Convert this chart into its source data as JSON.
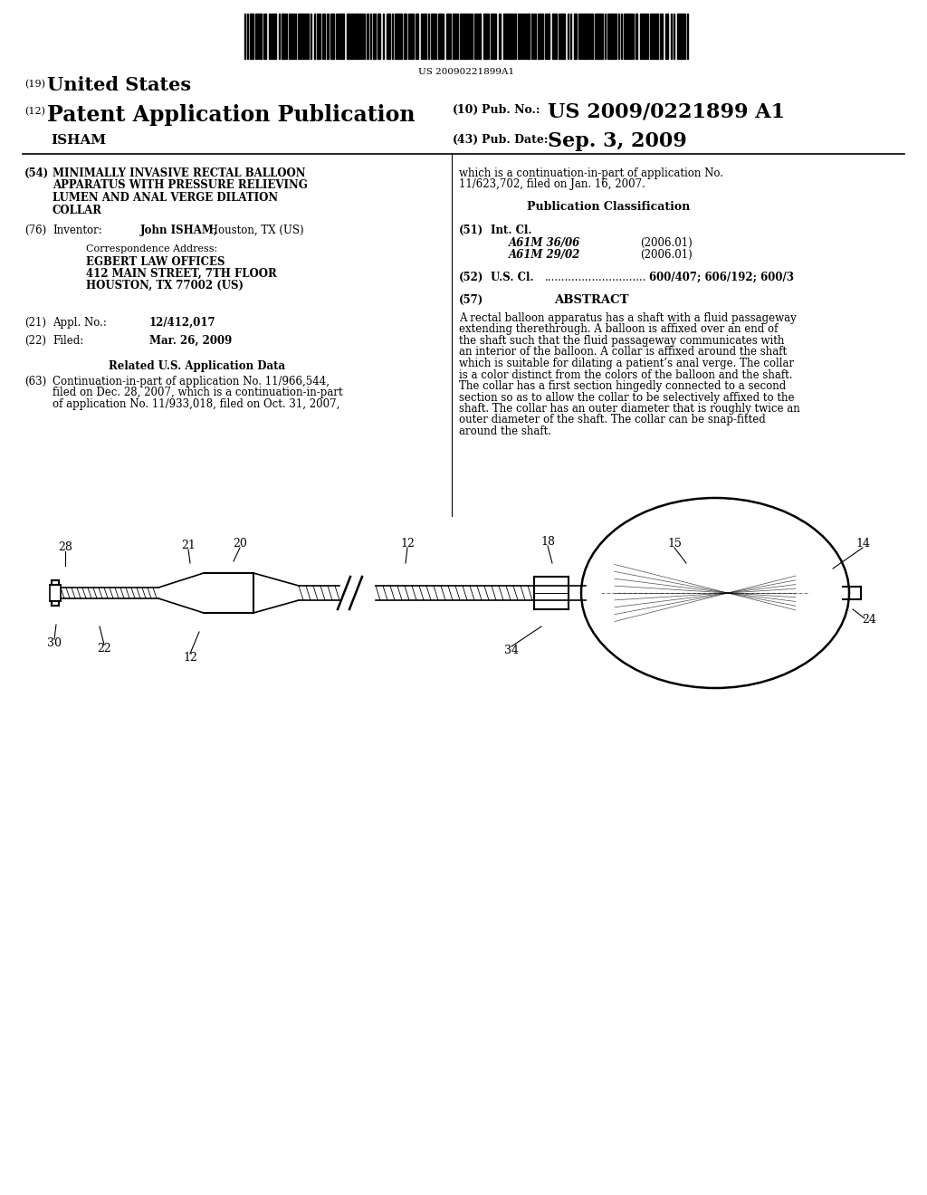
{
  "bg_color": "#ffffff",
  "barcode_text": "US 20090221899A1",
  "header_19": "(19)",
  "header_19_text": "United States",
  "header_12": "(12)",
  "header_12_text": "Patent Application Publication",
  "header_name": "ISHAM",
  "header_10_label": "(10)",
  "header_10_pub": "Pub. No.:",
  "header_10_value": "US 2009/0221899 A1",
  "header_43_label": "(43)",
  "header_43_pub": "Pub. Date:",
  "header_43_value": "Sep. 3, 2009",
  "field_54_num": "(54)",
  "field_54_lines": [
    "MINIMALLY INVASIVE RECTAL BALLOON",
    "APPARATUS WITH PRESSURE RELIEVING",
    "LUMEN AND ANAL VERGE DILATION",
    "COLLAR"
  ],
  "field_76_num": "(76)",
  "field_76_label": "Inventor:",
  "field_76_name": "John ISHAM,",
  "field_76_rest": " Houston, TX (US)",
  "corr_label": "Correspondence Address:",
  "corr_line1": "EGBERT LAW OFFICES",
  "corr_line2": "412 MAIN STREET, 7TH FLOOR",
  "corr_line3": "HOUSTON, TX 77002 (US)",
  "field_21_num": "(21)",
  "field_21_label": "Appl. No.:",
  "field_21_value": "12/412,017",
  "field_22_num": "(22)",
  "field_22_label": "Filed:",
  "field_22_value": "Mar. 26, 2009",
  "related_header": "Related U.S. Application Data",
  "field_63_num": "(63)",
  "field_63_lines": [
    "Continuation-in-part of application No. 11/966,544,",
    "filed on Dec. 28, 2007, which is a continuation-in-part",
    "of application No. 11/933,018, filed on Oct. 31, 2007,"
  ],
  "right_cont_lines": [
    "which is a continuation-in-part of application No.",
    "11/623,702, filed on Jan. 16, 2007."
  ],
  "pub_class_header": "Publication Classification",
  "field_51_num": "(51)",
  "field_51_label": "Int. Cl.",
  "field_51_a": "A61M 36/06",
  "field_51_a_date": "(2006.01)",
  "field_51_b": "A61M 29/02",
  "field_51_b_date": "(2006.01)",
  "field_52_num": "(52)",
  "field_52_label": "U.S. Cl.",
  "field_52_dots": "..............................",
  "field_52_value": "600/407; 606/192; 600/3",
  "field_57_num": "(57)",
  "field_57_header": "ABSTRACT",
  "abstract_lines": [
    "A rectal balloon apparatus has a shaft with a fluid passageway",
    "extending therethrough. A balloon is affixed over an end of",
    "the shaft such that the fluid passageway communicates with",
    "an interior of the balloon. A collar is affixed around the shaft",
    "which is suitable for dilating a patient’s anal verge. The collar",
    "is a color distinct from the colors of the balloon and the shaft.",
    "The collar has a first section hingedly connected to a second",
    "section so as to allow the collar to be selectively affixed to the",
    "shaft. The collar has an outer diameter that is roughly twice an",
    "outer diameter of the shaft. The collar can be snap-fitted",
    "around the shaft."
  ]
}
